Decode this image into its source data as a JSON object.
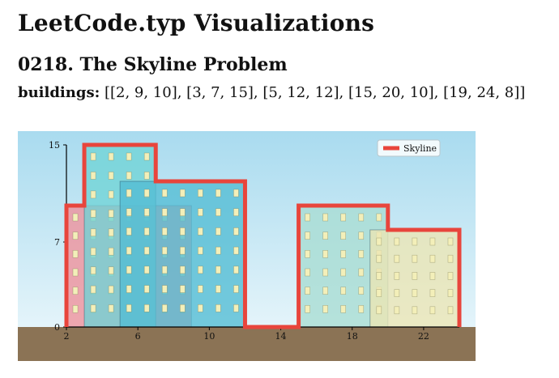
{
  "page": {
    "title": "LeetCode.typ Visualizations",
    "problem_title": "0218. The Skyline Problem",
    "input_label": "buildings:",
    "input_value": "[[2, 9, 10], [3, 7, 15], [5, 12, 12], [15, 20, 10], [19, 24, 8]]"
  },
  "colors": {
    "sky_top": "#a9dbef",
    "sky_bottom": "#e4f4fa",
    "ground": "#8b7355",
    "skyline": "#e8453c",
    "window": "#f3efb9",
    "building_fills": [
      "#f0909a",
      "#6fd3d6",
      "#52bdd4",
      "#a8dcd2",
      "#ece5b3"
    ]
  },
  "chart_data": {
    "type": "area",
    "buildings": [
      {
        "left": 2,
        "right": 9,
        "height": 10
      },
      {
        "left": 3,
        "right": 7,
        "height": 15
      },
      {
        "left": 5,
        "right": 12,
        "height": 12
      },
      {
        "left": 15,
        "right": 20,
        "height": 10
      },
      {
        "left": 19,
        "right": 24,
        "height": 8
      }
    ],
    "skyline": [
      [
        2,
        10
      ],
      [
        3,
        15
      ],
      [
        7,
        12
      ],
      [
        12,
        0
      ],
      [
        15,
        10
      ],
      [
        20,
        8
      ],
      [
        24,
        0
      ]
    ],
    "xticks": [
      2,
      6,
      10,
      14,
      18,
      22
    ],
    "yticks": [
      0,
      7,
      15
    ],
    "xlim": [
      2,
      24
    ],
    "ylim": [
      0,
      15
    ],
    "legend": {
      "label": "Skyline",
      "position": "top-right"
    },
    "grid": false
  }
}
